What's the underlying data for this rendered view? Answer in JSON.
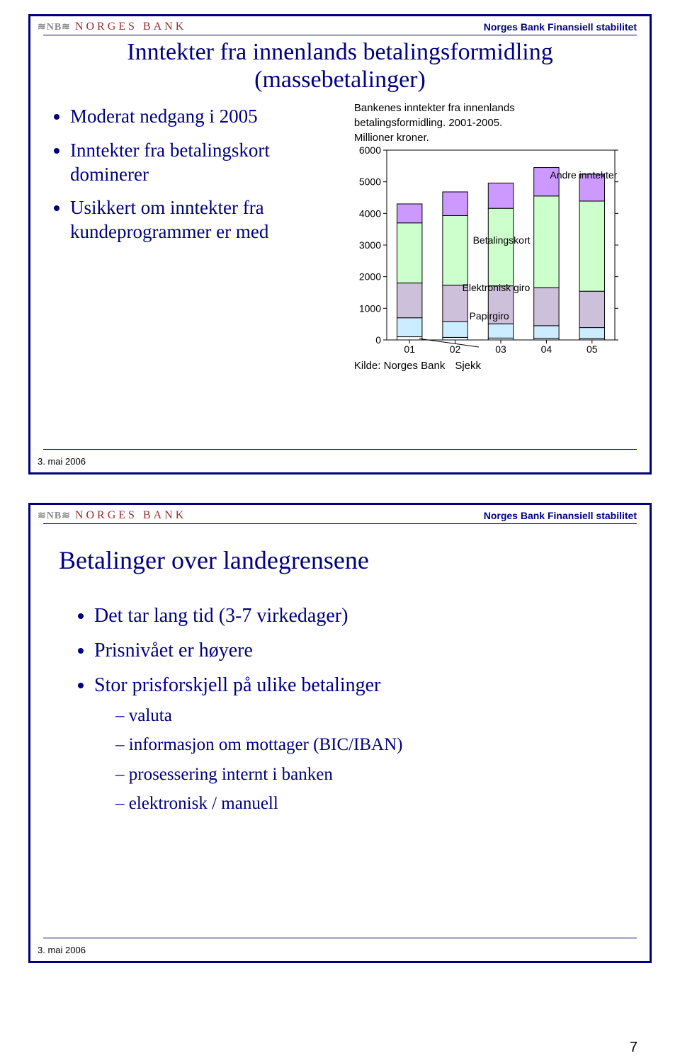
{
  "header": {
    "logo_nb": "≋NB≋",
    "logo_text": "NORGES BANK",
    "subtitle": "Norges Bank Finansiell stabilitet"
  },
  "footer": {
    "date": "3. mai 2006",
    "page_number": "7"
  },
  "slide1": {
    "title": "Inntekter fra innenlands betalingsformidling (massebetalinger)",
    "bullets": [
      "Moderat nedgang i 2005",
      "Inntekter fra betalingskort dominerer",
      "Usikkert om inntekter fra kundeprogrammer er med"
    ],
    "chart": {
      "caption_line1": "Bankenes inntekter fra innenlands",
      "caption_line2": "betalingsformidling. 2001-2005.",
      "caption_line3": "Millioner kroner.",
      "type": "stacked-bar",
      "x_labels": [
        "01",
        "02",
        "03",
        "04",
        "05"
      ],
      "y_ticks": [
        0,
        1000,
        2000,
        3000,
        4000,
        5000,
        6000
      ],
      "ylim": [
        0,
        6000
      ],
      "series_order_bottom_to_top": [
        "sjekk",
        "papirgiro",
        "elektronisk_giro",
        "betalingskort",
        "andre"
      ],
      "colors": {
        "sjekk": "#ffffff",
        "papirgiro": "#ccecff",
        "elektronisk_giro": "#ccc0da",
        "betalingskort": "#ccffcc",
        "andre": "#cc99ff",
        "border": "#000000",
        "axis": "#000000",
        "background": "#ffffff",
        "text": "#000000"
      },
      "data": {
        "01": {
          "sjekk": 100,
          "papirgiro": 600,
          "elektronisk_giro": 1100,
          "betalingskort": 1900,
          "andre": 600
        },
        "02": {
          "sjekk": 80,
          "papirgiro": 500,
          "elektronisk_giro": 1150,
          "betalingskort": 2200,
          "andre": 750
        },
        "03": {
          "sjekk": 60,
          "papirgiro": 450,
          "elektronisk_giro": 1200,
          "betalingskort": 2450,
          "andre": 800
        },
        "04": {
          "sjekk": 50,
          "papirgiro": 400,
          "elektronisk_giro": 1200,
          "betalingskort": 2900,
          "andre": 900
        },
        "05": {
          "sjekk": 40,
          "papirgiro": 350,
          "elektronisk_giro": 1150,
          "betalingskort": 2850,
          "andre": 850
        }
      },
      "annotations": {
        "andre": "Andre inntekter",
        "betalingskort": "Betalingskort",
        "elektronisk_giro": "Elektronisk giro",
        "papirgiro": "Papirgiro",
        "sjekk": "Sjekk"
      },
      "source_prefix": "Kilde: Norges Bank",
      "bar_width_ratio": 0.55,
      "tick_fontsize": 14,
      "annotation_fontsize": 14
    }
  },
  "slide2": {
    "title": "Betalinger over landegrensene",
    "bullets": [
      "Det tar lang tid (3-7 virkedager)",
      "Prisnivået er høyere",
      "Stor prisforskjell på ulike betalinger"
    ],
    "sub_bullets": [
      "valuta",
      "informasjon om mottager (BIC/IBAN)",
      "prosessering internt i banken",
      "elektronisk / manuell"
    ]
  }
}
